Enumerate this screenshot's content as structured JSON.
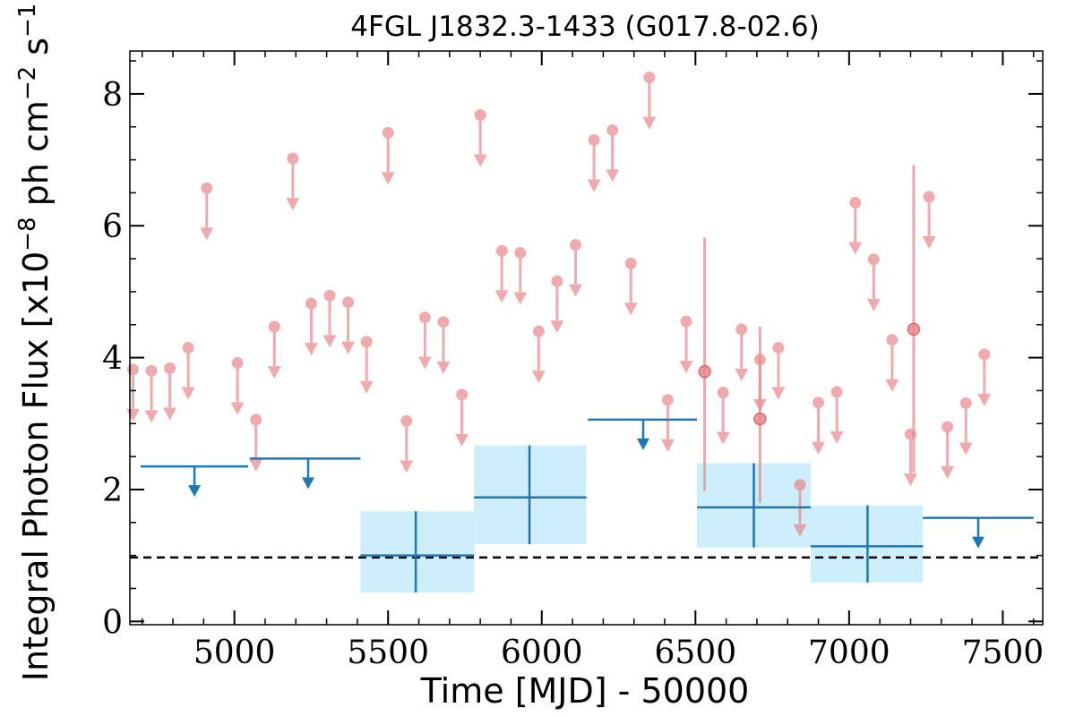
{
  "chart_data": {
    "type": "scatter",
    "title": "4FGL J1832.3-1433 (G017.8-02.6)",
    "xlabel": "Time [MJD] - 50000",
    "ylabel": {
      "prefix": "Integral Photon Flux [x10",
      "exp1": "−8",
      "mid": " ph cm",
      "exp2": "−2",
      "mid2": " s",
      "exp3": "−1",
      "suffix": "]"
    },
    "xlim": [
      4660,
      7630
    ],
    "ylim": [
      -0.05,
      8.65
    ],
    "xticks": [
      5000,
      5500,
      6000,
      6500,
      7000,
      7500
    ],
    "xtick_labels": [
      "5000",
      "5500",
      "6000",
      "6500",
      "7000",
      "7500"
    ],
    "yticks": [
      0,
      2,
      4,
      6,
      8
    ],
    "ytick_labels": [
      "0",
      "2",
      "4",
      "6",
      "8"
    ],
    "reference_line": {
      "y": 0.97,
      "style": "dashed",
      "color": "#000000"
    },
    "colors": {
      "fine": "#e88a8d",
      "coarse": "#1f77b4",
      "band": "#cdeefb"
    },
    "series": [
      {
        "kind": "fine_upper_limits",
        "points": [
          {
            "x": 4670,
            "y": 3.82
          },
          {
            "x": 4730,
            "y": 3.8
          },
          {
            "x": 4790,
            "y": 3.84
          },
          {
            "x": 4850,
            "y": 4.15
          },
          {
            "x": 4910,
            "y": 6.57
          },
          {
            "x": 5010,
            "y": 3.92
          },
          {
            "x": 5070,
            "y": 3.06
          },
          {
            "x": 5130,
            "y": 4.47
          },
          {
            "x": 5190,
            "y": 7.02
          },
          {
            "x": 5250,
            "y": 4.82
          },
          {
            "x": 5310,
            "y": 4.94
          },
          {
            "x": 5370,
            "y": 4.84
          },
          {
            "x": 5430,
            "y": 4.24
          },
          {
            "x": 5500,
            "y": 7.41
          },
          {
            "x": 5560,
            "y": 3.04
          },
          {
            "x": 5620,
            "y": 4.61
          },
          {
            "x": 5680,
            "y": 4.54
          },
          {
            "x": 5740,
            "y": 3.44
          },
          {
            "x": 5800,
            "y": 7.68
          },
          {
            "x": 5870,
            "y": 5.62
          },
          {
            "x": 5930,
            "y": 5.59
          },
          {
            "x": 5990,
            "y": 4.4
          },
          {
            "x": 6050,
            "y": 5.16
          },
          {
            "x": 6110,
            "y": 5.71
          },
          {
            "x": 6170,
            "y": 7.3
          },
          {
            "x": 6230,
            "y": 7.45
          },
          {
            "x": 6290,
            "y": 5.43
          },
          {
            "x": 6350,
            "y": 8.25
          },
          {
            "x": 6410,
            "y": 3.36
          },
          {
            "x": 6470,
            "y": 4.55
          },
          {
            "x": 6590,
            "y": 3.47
          },
          {
            "x": 6650,
            "y": 4.43
          },
          {
            "x": 6710,
            "y": 3.97
          },
          {
            "x": 6770,
            "y": 4.15
          },
          {
            "x": 6840,
            "y": 2.07
          },
          {
            "x": 6900,
            "y": 3.32
          },
          {
            "x": 6960,
            "y": 3.48
          },
          {
            "x": 7020,
            "y": 6.35
          },
          {
            "x": 7080,
            "y": 5.49
          },
          {
            "x": 7140,
            "y": 4.27
          },
          {
            "x": 7200,
            "y": 2.84
          },
          {
            "x": 7260,
            "y": 6.44
          },
          {
            "x": 7320,
            "y": 2.95
          },
          {
            "x": 7380,
            "y": 3.31
          },
          {
            "x": 7440,
            "y": 4.05
          }
        ]
      },
      {
        "kind": "fine_detections",
        "points": [
          {
            "x": 6530,
            "y": 3.79,
            "ylo": 1.98,
            "yhi": 5.82
          },
          {
            "x": 6710,
            "y": 3.07,
            "ylo": 1.8,
            "yhi": 4.47
          },
          {
            "x": 7210,
            "y": 4.43,
            "ylo": 2.25,
            "yhi": 6.92
          }
        ]
      },
      {
        "kind": "coarse_upper_limits",
        "points": [
          {
            "x": 4870,
            "y": 2.35,
            "x0": 4695,
            "x1": 5045
          },
          {
            "x": 5240,
            "y": 2.47,
            "x0": 5050,
            "x1": 5410
          },
          {
            "x": 6330,
            "y": 3.06,
            "x0": 6150,
            "x1": 6505
          },
          {
            "x": 7420,
            "y": 1.57,
            "x0": 7240,
            "x1": 7600
          }
        ]
      },
      {
        "kind": "coarse_detections",
        "points": [
          {
            "x": 5590,
            "y": 1.0,
            "x0": 5410,
            "x1": 5780,
            "ylo": 0.44,
            "yhi": 1.67
          },
          {
            "x": 5960,
            "y": 1.88,
            "x0": 5780,
            "x1": 6145,
            "ylo": 1.17,
            "yhi": 2.67
          },
          {
            "x": 6690,
            "y": 1.73,
            "x0": 6505,
            "x1": 6875,
            "ylo": 1.12,
            "yhi": 2.4
          },
          {
            "x": 7060,
            "y": 1.14,
            "x0": 6875,
            "x1": 7240,
            "ylo": 0.59,
            "yhi": 1.76
          }
        ]
      }
    ]
  }
}
